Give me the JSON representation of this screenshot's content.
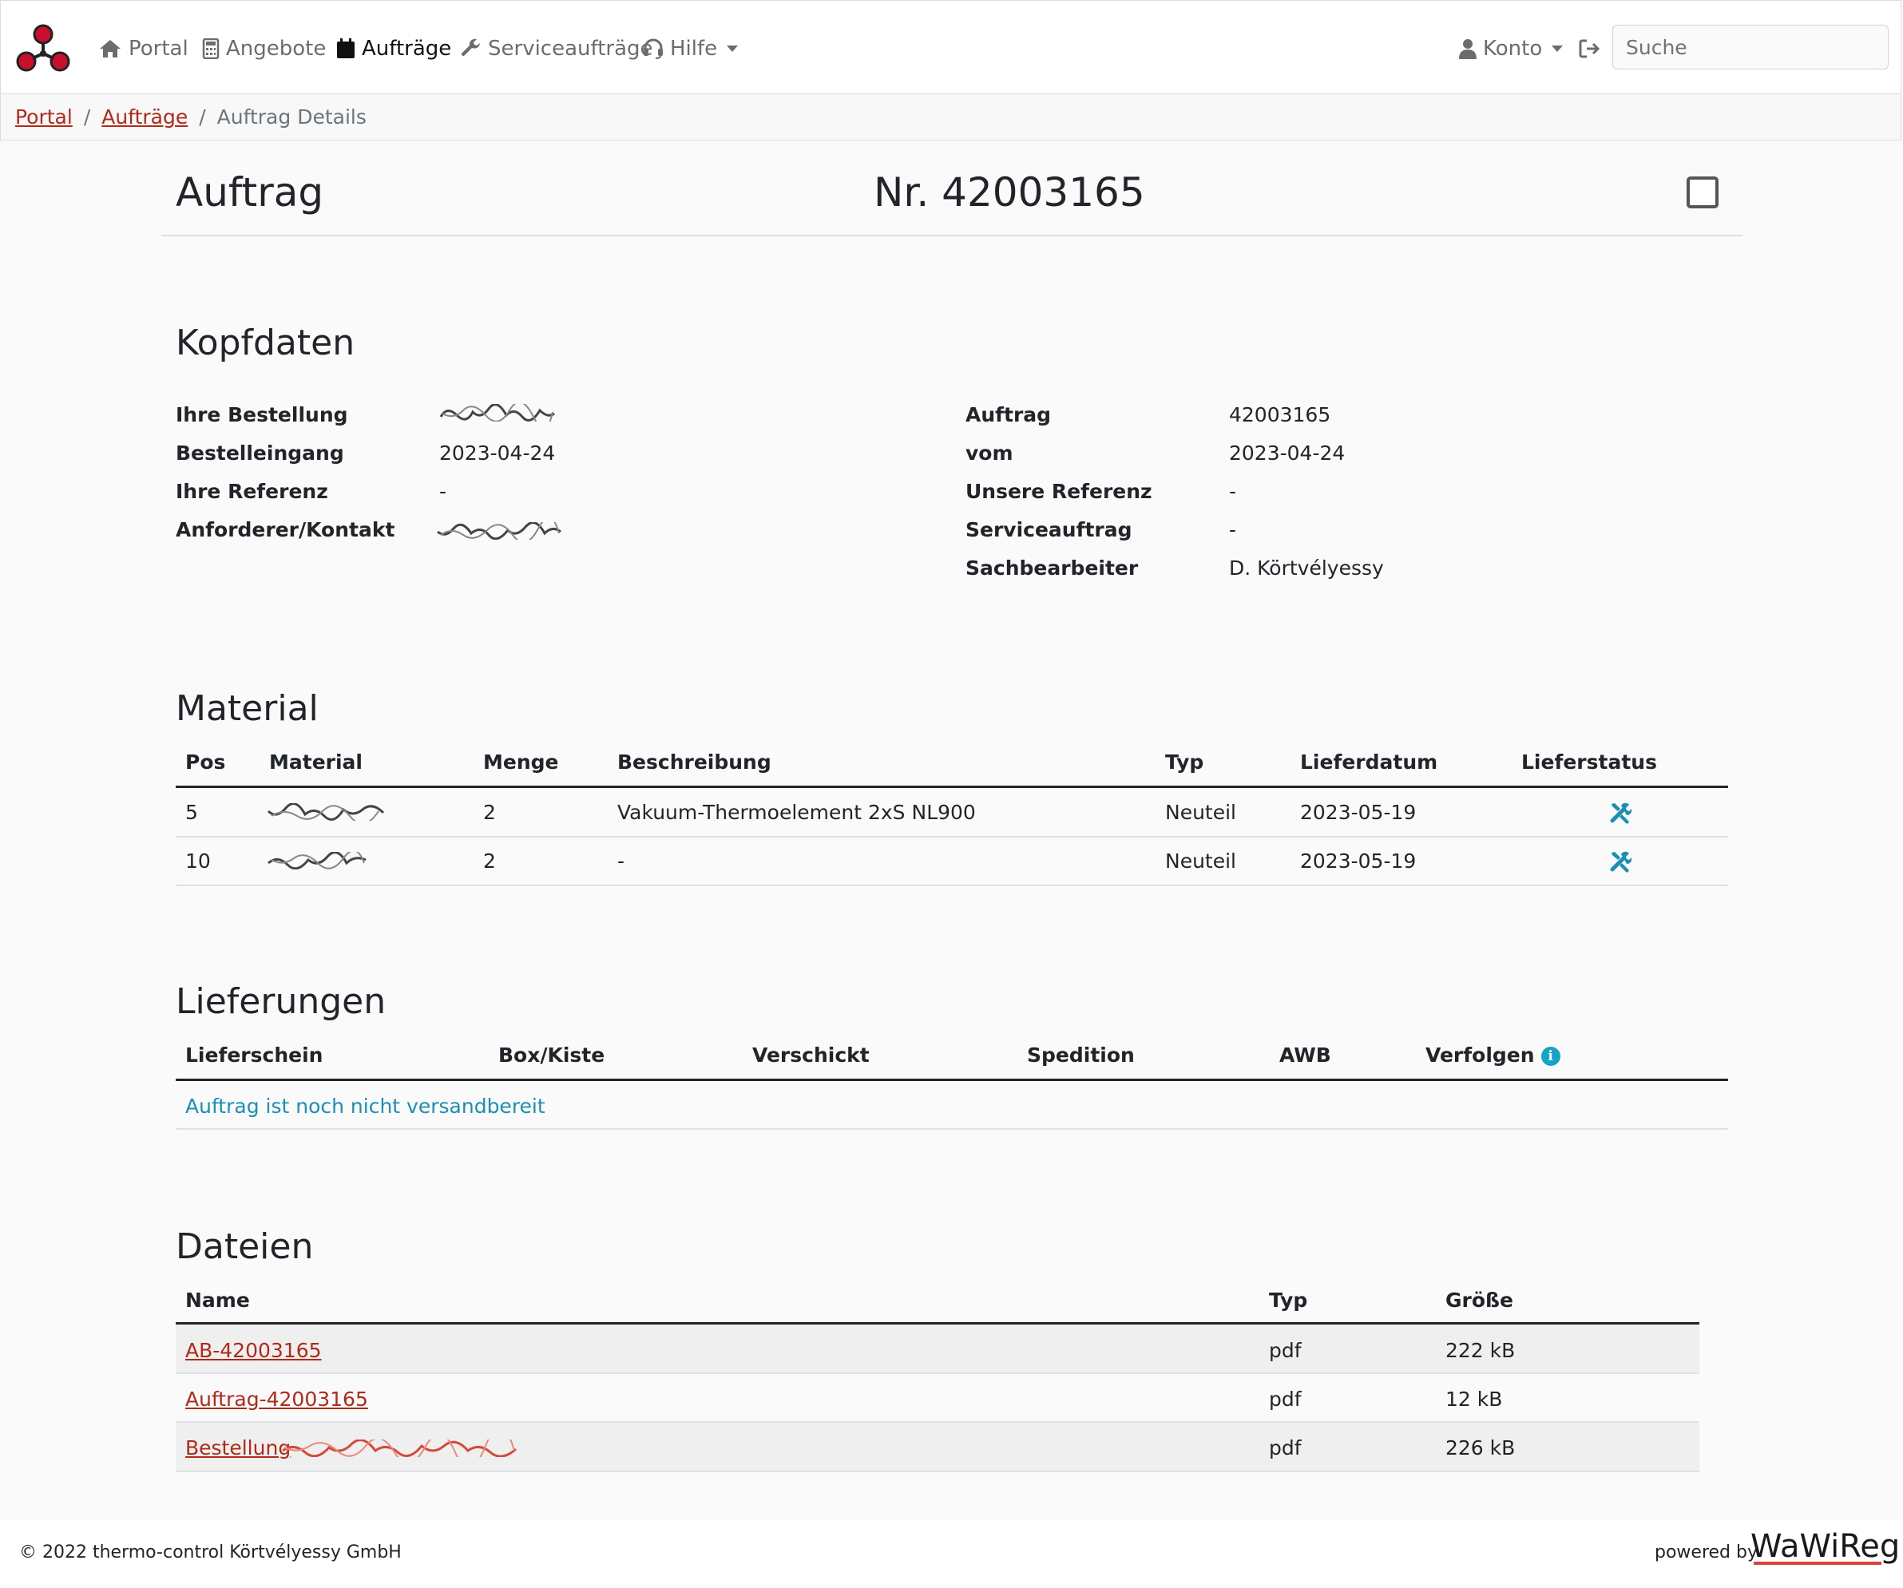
{
  "nav": {
    "items": [
      {
        "label": "Portal",
        "icon": "home-icon"
      },
      {
        "label": "Angebote",
        "icon": "calculator-icon"
      },
      {
        "label": "Aufträge",
        "icon": "calendar-icon"
      },
      {
        "label": "Serviceaufträge",
        "icon": "wrench-icon"
      },
      {
        "label": "Hilfe",
        "icon": "headset-icon"
      }
    ],
    "account_label": "Konto",
    "logout_icon": "logout-icon",
    "search_placeholder": "Suche"
  },
  "breadcrumb": {
    "items": [
      "Portal",
      "Aufträge"
    ],
    "current": "Auftrag Details"
  },
  "header": {
    "title": "Auftrag",
    "number": "Nr. 42003165"
  },
  "kopfdaten": {
    "heading": "Kopfdaten",
    "left": [
      {
        "label": "Ihre Bestellung",
        "value": ""
      },
      {
        "label": "Bestelleingang",
        "value": "2023-04-24"
      },
      {
        "label": "Ihre Referenz",
        "value": "-"
      },
      {
        "label": "Anforderer/Kontakt",
        "value": ""
      }
    ],
    "right": [
      {
        "label": "Auftrag",
        "value": "42003165"
      },
      {
        "label": "vom",
        "value": "2023-04-24"
      },
      {
        "label": "Unsere Referenz",
        "value": "-"
      },
      {
        "label": "Serviceauftrag",
        "value": "-"
      },
      {
        "label": "Sachbearbeiter",
        "value": "D. Körtvélyessy"
      }
    ]
  },
  "material": {
    "heading": "Material",
    "columns": [
      "Pos",
      "Material",
      "Menge",
      "Beschreibung",
      "Typ",
      "Lieferdatum",
      "Lieferstatus"
    ],
    "rows": [
      {
        "pos": "5",
        "material": "",
        "menge": "2",
        "beschreibung": "Vakuum-Thermoelement 2xS NL900",
        "typ": "Neuteil",
        "lieferdatum": "2023-05-19",
        "status_icon": "tools-icon"
      },
      {
        "pos": "10",
        "material": "",
        "menge": "2",
        "beschreibung": "-",
        "typ": "Neuteil",
        "lieferdatum": "2023-05-19",
        "status_icon": "tools-icon"
      }
    ]
  },
  "lieferungen": {
    "heading": "Lieferungen",
    "columns": [
      "Lieferschein",
      "Box/Kiste",
      "Verschickt",
      "Spedition",
      "AWB",
      "Verfolgen"
    ],
    "message": "Auftrag ist noch nicht versandbereit"
  },
  "dateien": {
    "heading": "Dateien",
    "columns": [
      "Name",
      "Typ",
      "Größe"
    ],
    "rows": [
      {
        "name": "AB-42003165",
        "typ": "pdf",
        "size": "222 kB"
      },
      {
        "name": "Auftrag-42003165",
        "typ": "pdf",
        "size": "12 kB"
      },
      {
        "name": "Bestellung",
        "typ": "pdf",
        "size": "226 kB"
      }
    ]
  },
  "footer": {
    "copyright": "© 2022 thermo-control Körtvélyessy GmbH",
    "powered": "powered by",
    "brand": "WaWiReg"
  },
  "colors": {
    "link": "#b02a1a",
    "info": "#17a2c8",
    "icon": "#1b8fb5"
  }
}
